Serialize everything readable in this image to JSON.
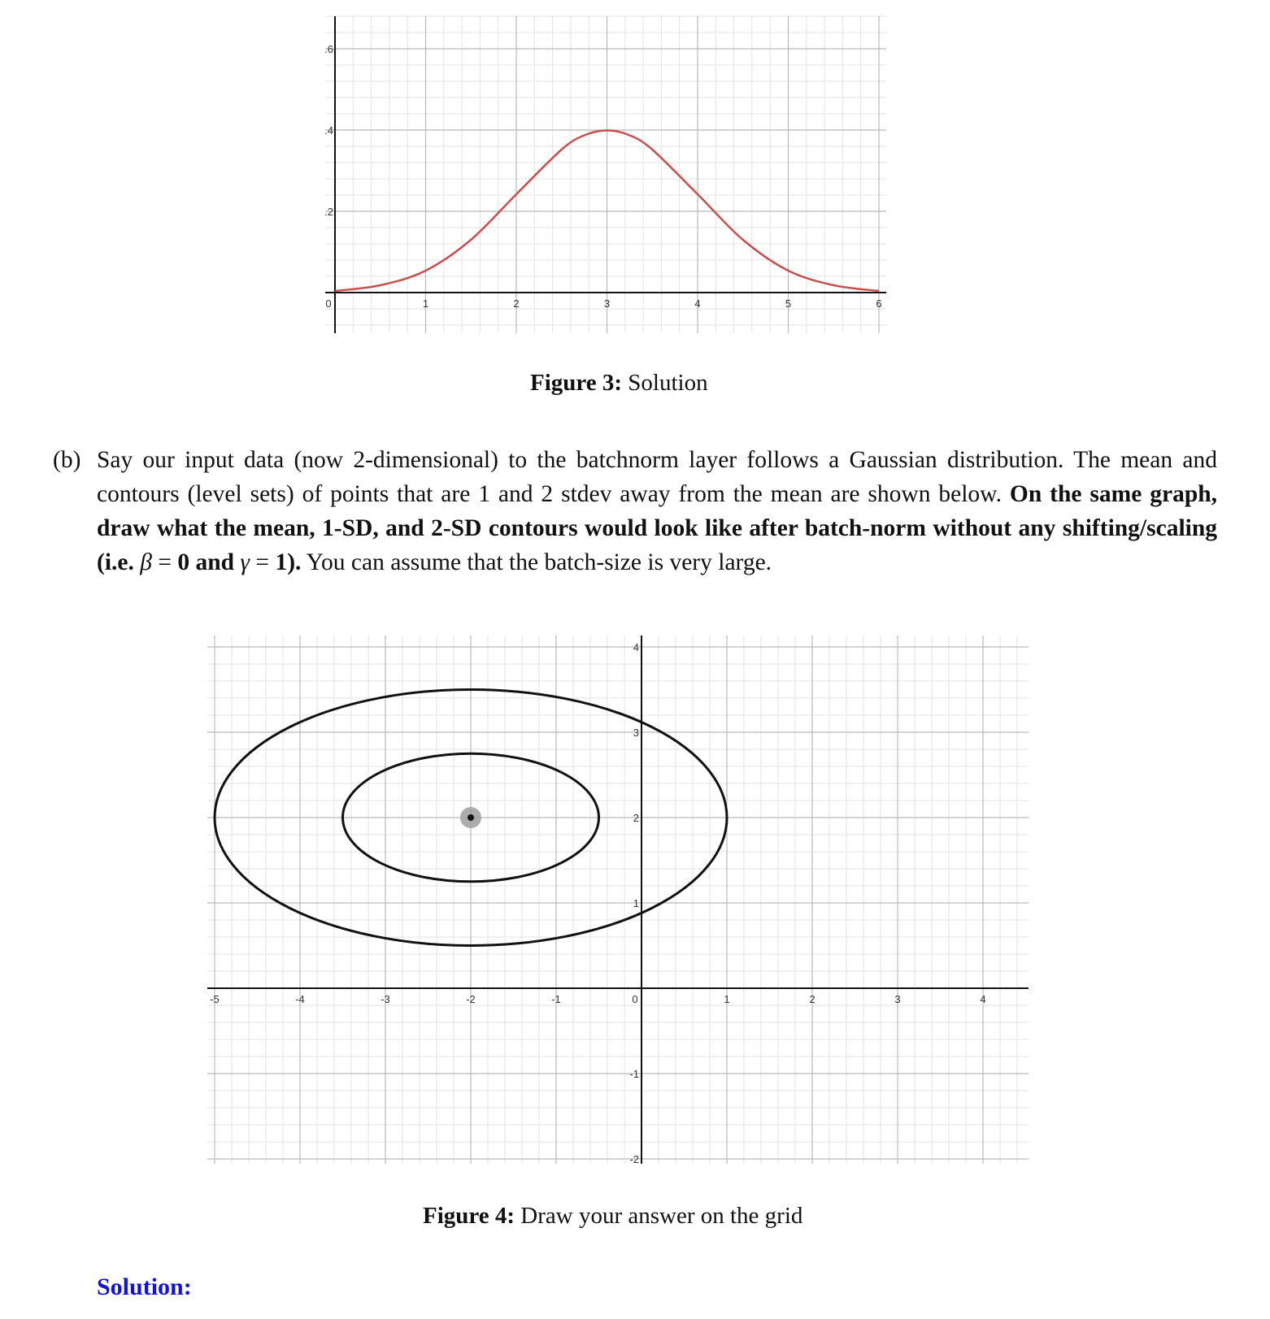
{
  "figure3": {
    "caption_label": "Figure 3:",
    "caption_text": "Solution",
    "chart_data": {
      "type": "line",
      "x_ticks": [
        "0",
        "1",
        "2",
        "3",
        "4",
        "5",
        "6"
      ],
      "y_ticks": [
        "0.2",
        "0.4",
        "0.6"
      ],
      "xlim": [
        0,
        6
      ],
      "ylim": [
        0,
        0.6
      ],
      "series": [
        {
          "color": "#c8504e",
          "x": [
            0,
            0.5,
            1,
            1.5,
            2,
            2.5,
            2.75,
            3,
            3.25,
            3.5,
            4,
            4.5,
            5,
            5.5,
            6
          ],
          "y": [
            0.004,
            0.018,
            0.054,
            0.13,
            0.242,
            0.352,
            0.387,
            0.399,
            0.387,
            0.352,
            0.242,
            0.13,
            0.054,
            0.018,
            0.004
          ]
        }
      ],
      "grid": true
    }
  },
  "question": {
    "label": "(b)",
    "sentence1": "Say our input data (now 2-dimensional) to the batchnorm layer follows a Gaussian distribution. The mean and contours (level sets) of points that are 1 and 2 stdev away from the mean are shown below.",
    "bold1": "On the same graph, draw what the mean, 1-SD, and 2-SD contours would look like after batch-norm without any shifting/scaling (i.e.",
    "beta": "β",
    "eq1": "=",
    "bold2": "0 and",
    "gamma": "γ",
    "eq2": "=",
    "bold3": "1).",
    "sentence2": "You can assume that the batch-size is very large."
  },
  "figure4": {
    "caption_label": "Figure 4:",
    "caption_text": "Draw your answer on the grid",
    "chart_data": {
      "type": "scatter",
      "x_ticks": [
        "-5",
        "-4",
        "-3",
        "-2",
        "-1",
        "0",
        "1",
        "2",
        "3",
        "4"
      ],
      "y_ticks": [
        "-2",
        "-1",
        "0",
        "1",
        "2",
        "3",
        "4"
      ],
      "xlim": [
        -5.3,
        4.2
      ],
      "ylim": [
        -2.1,
        4.1
      ],
      "mean": {
        "x": -2,
        "y": 2
      },
      "contours": [
        {
          "label": "1-SD",
          "cx": -2,
          "cy": 2,
          "rx": 1.5,
          "ry": 0.75
        },
        {
          "label": "2-SD",
          "cx": -2,
          "cy": 2,
          "rx": 3,
          "ry": 1.5
        }
      ],
      "grid": true
    }
  },
  "solution_label": "Solution:"
}
